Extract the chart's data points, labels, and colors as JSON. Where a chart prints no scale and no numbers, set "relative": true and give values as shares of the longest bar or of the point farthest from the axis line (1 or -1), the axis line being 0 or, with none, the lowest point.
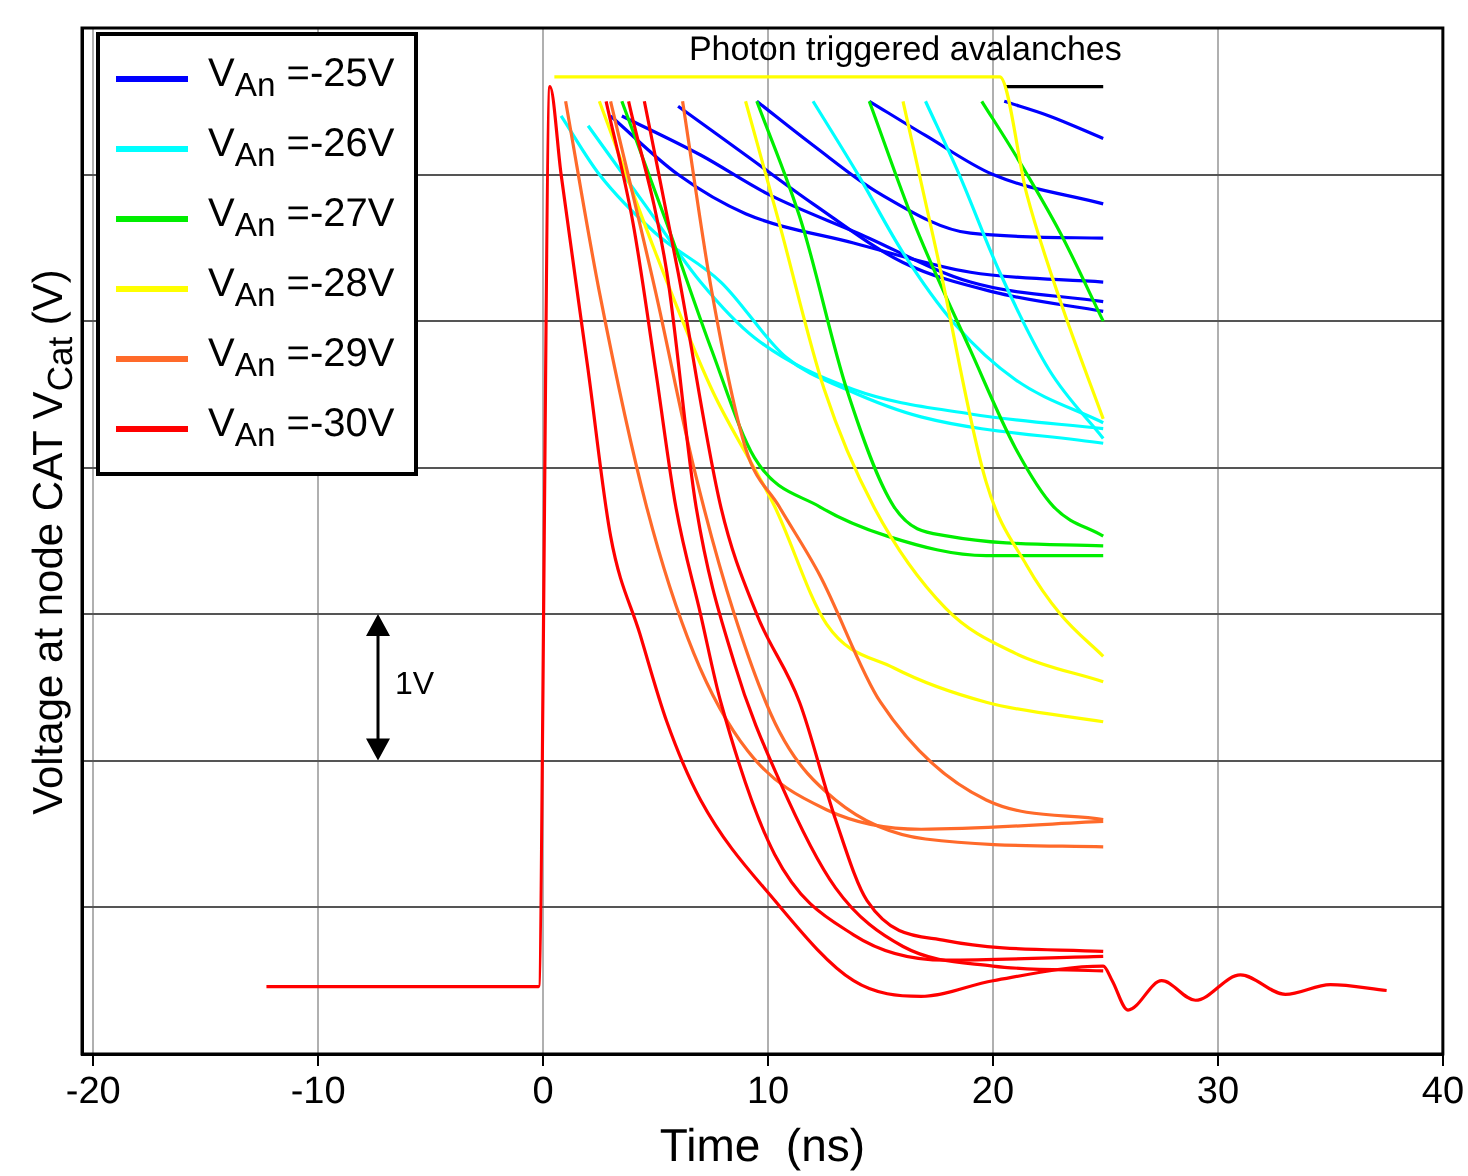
{
  "chart_data": {
    "type": "line",
    "title": "Photon triggered avalanches",
    "xlabel": "Time  (ns)",
    "ylabel": "Voltage at node CAT V$_{Cat}$  (V)",
    "relative": true,
    "xlim": [
      -20.5,
      40
    ],
    "xticks": [
      -20,
      -10,
      0,
      10,
      20,
      30,
      40
    ],
    "grid": true,
    "legend": "top left",
    "marker": "none",
    "line_style": "solid",
    "annotations": [
      "1V"
    ],
    "series": [
      {
        "color": "#000000",
        "x": [
          20.5,
          24.9
        ],
        "values": [
          0.99,
          0.99
        ]
      },
      {
        "name": "V$_{An}$ =-25V",
        "color": "#0000ff",
        "x": [
          20.5,
          22.5,
          24.9
        ],
        "values": [
          0.975,
          0.96,
          0.937
        ]
      },
      {
        "color": "#0000ff",
        "x": [
          14.5,
          17,
          20,
          24.9
        ],
        "values": [
          0.975,
          0.94,
          0.9,
          0.87
        ]
      },
      {
        "color": "#0000ff",
        "x": [
          3,
          6,
          9,
          13.8,
          19,
          24.9
        ],
        "values": [
          0.96,
          0.9,
          0.86,
          0.83,
          0.8,
          0.79
        ]
      },
      {
        "color": "#0000ff",
        "x": [
          3.5,
          7,
          10,
          14,
          19,
          24.9
        ],
        "values": [
          0.96,
          0.92,
          0.88,
          0.84,
          0.79,
          0.77
        ]
      },
      {
        "color": "#0000ff",
        "x": [
          9.5,
          12,
          15,
          19,
          24.9
        ],
        "values": [
          0.975,
          0.93,
          0.88,
          0.84,
          0.835
        ]
      },
      {
        "color": "#0000ff",
        "x": [
          6,
          9,
          12,
          16,
          20,
          24.9
        ],
        "values": [
          0.97,
          0.92,
          0.87,
          0.81,
          0.78,
          0.76
        ]
      },
      {
        "name": "V$_{An}$ =-26V",
        "color": "#00ffff",
        "x": [
          0.8,
          2.5,
          5,
          7.9,
          10.8,
          13.5,
          16.8,
          24.9
        ],
        "values": [
          0.96,
          0.9,
          0.84,
          0.79,
          0.713,
          0.68,
          0.652,
          0.625
        ]
      },
      {
        "color": "#00ffff",
        "x": [
          12,
          14,
          16,
          18.3,
          21,
          24.9
        ],
        "values": [
          0.975,
          0.9,
          0.82,
          0.747,
          0.69,
          0.646
        ]
      },
      {
        "color": "#00ffff",
        "x": [
          2,
          4.5,
          7,
          9.4,
          13.8,
          19,
          24.9
        ],
        "values": [
          0.95,
          0.87,
          0.79,
          0.733,
          0.68,
          0.655,
          0.64
        ]
      },
      {
        "color": "#00ffff",
        "x": [
          17,
          18.5,
          20.3,
          22.5,
          24.9
        ],
        "values": [
          0.975,
          0.9,
          0.8,
          0.7,
          0.63
        ]
      },
      {
        "name": "V$_{An}$ =-27V",
        "color": "#00ee00",
        "x": [
          3.5,
          5.5,
          7.5,
          9.4,
          12.3,
          15.3,
          19.7,
          24.9
        ],
        "values": [
          0.975,
          0.85,
          0.72,
          0.61,
          0.56,
          0.53,
          0.51,
          0.51
        ]
      },
      {
        "color": "#00ee00",
        "x": [
          9.5,
          11.5,
          13.5,
          15.6,
          18,
          24.9
        ],
        "values": [
          0.975,
          0.85,
          0.68,
          0.56,
          0.53,
          0.52
        ]
      },
      {
        "color": "#00ee00",
        "x": [
          14.5,
          16.5,
          19,
          21,
          22.7,
          24.9
        ],
        "values": [
          0.975,
          0.85,
          0.72,
          0.62,
          0.56,
          0.53
        ]
      },
      {
        "color": "#00ee00",
        "x": [
          19.5,
          21,
          23,
          24.9
        ],
        "values": [
          0.975,
          0.92,
          0.84,
          0.75
        ]
      },
      {
        "name": "V$_{An}$ =-28V",
        "color": "#ffff00",
        "x": [
          2.5,
          5,
          7.5,
          10.3,
          12.6,
          15.6,
          19.7,
          24.9
        ],
        "values": [
          0.975,
          0.82,
          0.68,
          0.56,
          0.44,
          0.395,
          0.36,
          0.34
        ]
      },
      {
        "color": "#ffff00",
        "x": [
          9,
          10.5,
          12.5,
          14.7,
          17.9,
          21,
          24.9
        ],
        "values": [
          0.975,
          0.85,
          0.68,
          0.56,
          0.456,
          0.41,
          0.381
        ]
      },
      {
        "color": "#ffff00",
        "x": [
          16,
          17.5,
          19.7,
          21.5,
          23,
          24.9
        ],
        "values": [
          0.975,
          0.82,
          0.585,
          0.5,
          0.45,
          0.407
        ]
      },
      {
        "color": "#ffff00",
        "x": [
          0.5,
          20.3,
          21.5,
          23,
          24.9
        ],
        "values": [
          1,
          1,
          0.88,
          0.77,
          0.65
        ]
      },
      {
        "name": "V$_{An}$ =-29V",
        "color": "#ff6a2a",
        "x": [
          1,
          2.5,
          4.6,
          6.7,
          9.1,
          12.6,
          16.8,
          24.9
        ],
        "values": [
          0.975,
          0.78,
          0.56,
          0.41,
          0.31,
          0.25,
          0.23,
          0.238
        ]
      },
      {
        "color": "#ff6a2a",
        "x": [
          3,
          5,
          6.7,
          8.5,
          10.5,
          13,
          17,
          24.9
        ],
        "values": [
          0.975,
          0.78,
          0.6,
          0.45,
          0.33,
          0.26,
          0.22,
          0.212
        ]
      },
      {
        "color": "#ff6a2a",
        "x": [
          6.2,
          7.5,
          9,
          10.5,
          12.3,
          15,
          19.7,
          24.9
        ],
        "values": [
          0.975,
          0.78,
          0.62,
          0.56,
          0.49,
          0.36,
          0.26,
          0.24
        ]
      },
      {
        "name": "V$_{An}$ =-30V",
        "color": "#ff0000",
        "x": [
          -12.3,
          -0.2,
          0.3,
          0.8,
          2,
          3,
          4.3,
          5.5,
          7,
          10.3,
          13.8,
          16.8,
          20,
          24.9,
          25.3,
          26,
          27.5,
          29,
          31,
          33,
          35,
          37.5
        ],
        "values": [
          0.069,
          0.069,
          0.99,
          0.9,
          0.7,
          0.53,
          0.43,
          0.34,
          0.26,
          0.157,
          0.075,
          0.059,
          0.075,
          0.09,
          0.075,
          0.045,
          0.075,
          0.055,
          0.081,
          0.061,
          0.071,
          0.065
        ]
      },
      {
        "color": "#ff0000",
        "x": [
          2.8,
          4,
          5,
          5.9,
          7,
          7.9,
          10.3,
          13.8,
          17.9,
          24.9
        ],
        "values": [
          0.975,
          0.85,
          0.7,
          0.56,
          0.45,
          0.36,
          0.204,
          0.122,
          0.096,
          0.1
        ]
      },
      {
        "color": "#ff0000",
        "x": [
          3.8,
          5.5,
          6.8,
          8.5,
          10.5,
          13,
          16,
          20,
          24.9
        ],
        "values": [
          0.975,
          0.8,
          0.56,
          0.4,
          0.28,
          0.17,
          0.11,
          0.09,
          0.085
        ]
      },
      {
        "color": "#ff0000",
        "x": [
          4.5,
          6,
          7.9,
          9.5,
          11.4,
          13,
          14.4,
          17.9,
          24.9
        ],
        "values": [
          0.975,
          0.8,
          0.56,
          0.45,
          0.36,
          0.24,
          0.157,
          0.116,
          0.105
        ]
      }
    ]
  }
}
